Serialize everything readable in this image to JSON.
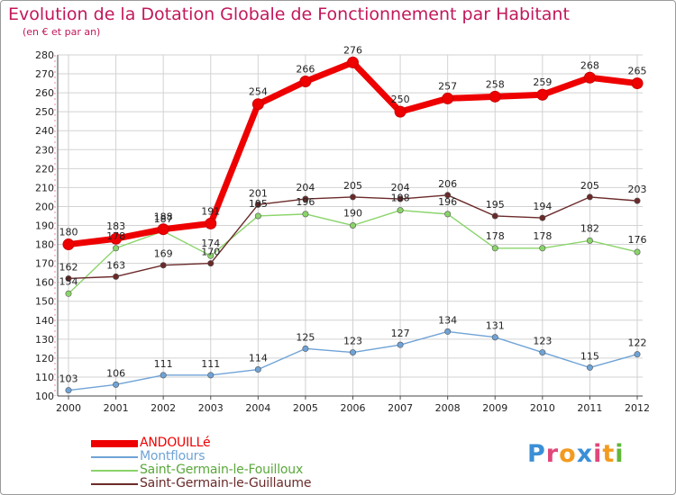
{
  "chart_data": {
    "type": "line",
    "title": "Evolution de la Dotation Globale de Fonctionnement par Habitant",
    "subtitle": "(en € et par an)",
    "categories": [
      "2000",
      "2001",
      "2002",
      "2003",
      "2004",
      "2005",
      "2006",
      "2007",
      "2008",
      "2009",
      "2010",
      "2011",
      "2012"
    ],
    "ylim": [
      100,
      280
    ],
    "yticks": [
      100,
      110,
      120,
      130,
      140,
      150,
      160,
      170,
      180,
      190,
      200,
      210,
      220,
      230,
      240,
      250,
      260,
      270,
      280
    ],
    "grid": true,
    "legend_position": "bottom-left",
    "series": [
      {
        "name": "ANDOUILLé",
        "color": "#ee0000",
        "values": [
          180,
          183,
          188,
          191,
          254,
          266,
          276,
          250,
          257,
          258,
          259,
          268,
          265
        ]
      },
      {
        "name": "Montflours",
        "color": "#6fa3d6",
        "values": [
          103,
          106,
          111,
          111,
          114,
          125,
          123,
          127,
          134,
          131,
          123,
          115,
          122
        ]
      },
      {
        "name": "Saint-Germain-le-Fouilloux",
        "color": "#8ad46a",
        "values": [
          154,
          178,
          187,
          174,
          195,
          196,
          190,
          198,
          196,
          178,
          178,
          182,
          176
        ]
      },
      {
        "name": "Saint-Germain-le-Guillaume",
        "color": "#6b2a2a",
        "values": [
          162,
          163,
          169,
          170,
          201,
          204,
          205,
          204,
          206,
          195,
          194,
          205,
          203
        ]
      }
    ]
  },
  "logo": {
    "letters": [
      "P",
      "r",
      "o",
      "x",
      "i",
      "t",
      "i"
    ],
    "colors": [
      "#3a8fd6",
      "#e0477a",
      "#f39b1f",
      "#3a8fd6",
      "#e0477a",
      "#f39b1f",
      "#62b63a"
    ]
  }
}
